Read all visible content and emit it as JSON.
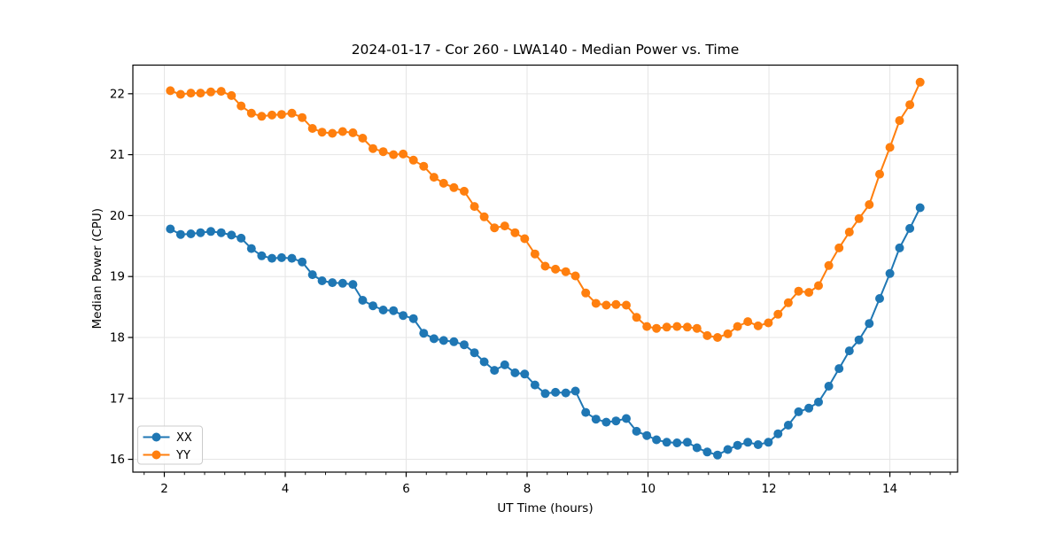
{
  "chart_data": {
    "type": "line",
    "title": "2024-01-17 - Cor 260 - LWA140 - Median Power vs. Time",
    "xlabel": "UT Time (hours)",
    "ylabel": "Median Power (CPU)",
    "xlim": [
      1.48,
      15.12
    ],
    "ylim": [
      15.79,
      22.47
    ],
    "x_ticks": [
      2,
      4,
      6,
      8,
      10,
      12,
      14
    ],
    "y_ticks": [
      16,
      17,
      18,
      19,
      20,
      21,
      22
    ],
    "x_minor_step": 0.3333,
    "grid": true,
    "legend_position": "lower left",
    "marker": "circle",
    "x": [
      2.1,
      2.27,
      2.44,
      2.6,
      2.77,
      2.94,
      3.11,
      3.27,
      3.44,
      3.61,
      3.78,
      3.94,
      4.11,
      4.28,
      4.45,
      4.61,
      4.78,
      4.95,
      5.12,
      5.28,
      5.45,
      5.62,
      5.79,
      5.95,
      6.12,
      6.29,
      6.46,
      6.62,
      6.79,
      6.96,
      7.13,
      7.29,
      7.46,
      7.63,
      7.8,
      7.96,
      8.13,
      8.3,
      8.47,
      8.64,
      8.8,
      8.97,
      9.14,
      9.31,
      9.47,
      9.64,
      9.81,
      9.98,
      10.14,
      10.31,
      10.48,
      10.65,
      10.81,
      10.98,
      11.15,
      11.32,
      11.48,
      11.65,
      11.82,
      11.99,
      12.15,
      12.32,
      12.49,
      12.66,
      12.82,
      12.99,
      13.16,
      13.33,
      13.49,
      13.66,
      13.83,
      14.0,
      14.16,
      14.33,
      14.5
    ],
    "series": [
      {
        "name": "XX",
        "color": "#1f77b4",
        "values": [
          19.78,
          19.69,
          19.7,
          19.72,
          19.74,
          19.72,
          19.68,
          19.63,
          19.46,
          19.34,
          19.3,
          19.31,
          19.3,
          19.24,
          19.03,
          18.93,
          18.9,
          18.89,
          18.87,
          18.61,
          18.52,
          18.45,
          18.44,
          18.36,
          18.31,
          18.07,
          17.98,
          17.95,
          17.93,
          17.88,
          17.75,
          17.6,
          17.46,
          17.55,
          17.42,
          17.4,
          17.22,
          17.08,
          17.1,
          17.09,
          17.12,
          16.77,
          16.66,
          16.61,
          16.63,
          16.67,
          16.46,
          16.39,
          16.32,
          16.28,
          16.27,
          16.28,
          16.19,
          16.12,
          16.07,
          16.16,
          16.23,
          16.28,
          16.24,
          16.28,
          16.42,
          16.56,
          16.78,
          16.84,
          16.94,
          17.2,
          17.49,
          17.78,
          17.96,
          18.23,
          18.64,
          19.05,
          19.47,
          19.79,
          20.13
        ]
      },
      {
        "name": "YY",
        "color": "#ff7f0e",
        "values": [
          22.05,
          21.99,
          22.01,
          22.01,
          22.03,
          22.04,
          21.97,
          21.8,
          21.68,
          21.63,
          21.65,
          21.66,
          21.68,
          21.61,
          21.43,
          21.37,
          21.35,
          21.38,
          21.36,
          21.27,
          21.1,
          21.05,
          21.0,
          21.01,
          20.91,
          20.81,
          20.63,
          20.53,
          20.46,
          20.4,
          20.15,
          19.98,
          19.8,
          19.83,
          19.72,
          19.62,
          19.37,
          19.17,
          19.12,
          19.08,
          19.01,
          18.73,
          18.56,
          18.53,
          18.54,
          18.53,
          18.33,
          18.18,
          18.15,
          18.17,
          18.18,
          18.17,
          18.15,
          18.03,
          18.0,
          18.06,
          18.18,
          18.26,
          18.19,
          18.24,
          18.38,
          18.57,
          18.76,
          18.74,
          18.85,
          19.18,
          19.47,
          19.73,
          19.95,
          20.18,
          20.68,
          21.12,
          21.56,
          21.82,
          22.19
        ]
      }
    ]
  }
}
